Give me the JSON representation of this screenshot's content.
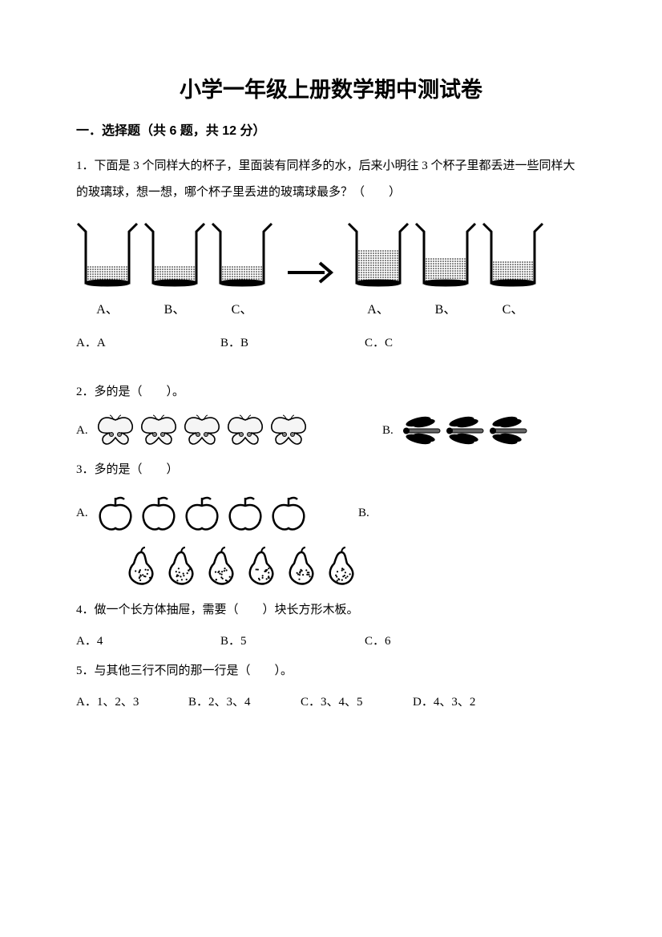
{
  "title": "小学一年级上册数学期中测试卷",
  "section1": {
    "header": "一．选择题（共 6 题，共 12 分）"
  },
  "q1": {
    "text": "1．下面是 3 个同样大的杯子，里面装有同样多的水，后来小明往 3 个杯子里都丢进一些同样大的玻璃球，想一想，哪个杯子里丢进的玻璃球最多？（　　）",
    "left": {
      "labelA": "A、",
      "labelB": "B、",
      "labelC": "C、"
    },
    "right": {
      "labelA": "A、",
      "labelB": "B、",
      "labelC": "C、"
    },
    "opts": {
      "a": "A．A",
      "b": "B．B",
      "c": "C．C"
    },
    "beaker_fill_before": [
      0.38,
      0.38,
      0.38
    ],
    "beaker_fill_after": [
      0.72,
      0.55,
      0.48
    ]
  },
  "q2": {
    "text": "2．多的是（　　）。",
    "opts": {
      "a": "A.",
      "b": "B."
    },
    "countA": 5,
    "countB": 3
  },
  "q3": {
    "text": "3．多的是（　　）",
    "opts": {
      "a": "A.",
      "b": "B."
    },
    "countA": 5,
    "countB": 6
  },
  "q4": {
    "text": "4．做一个长方体抽屉，需要（　　）块长方形木板。",
    "opts": {
      "a": "A．4",
      "b": "B．5",
      "c": "C．6"
    }
  },
  "q5": {
    "text": "5．与其他三行不同的那一行是（　　）。",
    "opts": {
      "a": "A．1、2、3",
      "b": "B．2、3、4",
      "c": "C．3、4、5",
      "d": "D．4、3、2"
    }
  },
  "colors": {
    "stroke": "#000000",
    "bg": "#ffffff",
    "dotfill": "#000000"
  }
}
